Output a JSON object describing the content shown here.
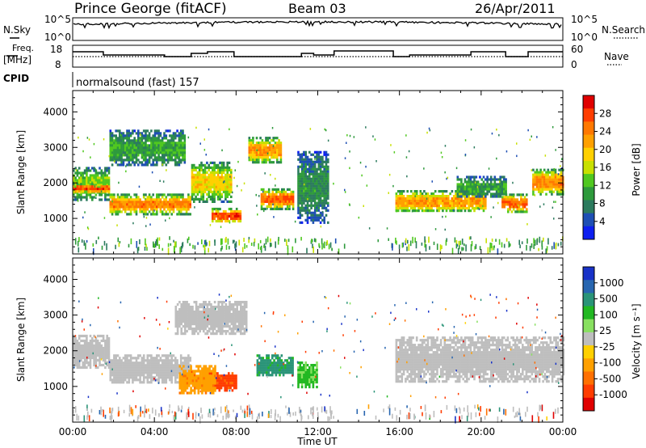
{
  "header": {
    "station": "Prince George (fitACF)",
    "beam": "Beam 03",
    "date": "26/Apr/2011"
  },
  "status_panels": {
    "nsky_label": "N.Sky",
    "nsky_ticks": [
      "10^5",
      "10^0"
    ],
    "nsearch_label": "N.Search",
    "nsearch_ticks": [
      "10^5",
      "10^0"
    ],
    "freq_label": "Freq.",
    "freq_unit": "[MHz]",
    "freq_ticks": [
      "18",
      "8"
    ],
    "nave_label": "Nave",
    "nave_ticks": [
      "60",
      "0"
    ],
    "cpid_label": "CPID",
    "cpid_text": "normalsound (fast) 157"
  },
  "power_colorbar": {
    "label": "Power [dB]",
    "ticks": [
      "28",
      "24",
      "20",
      "16",
      "12",
      "8",
      "4"
    ],
    "colors": [
      "#e00000",
      "#ff3d00",
      "#ff7800",
      "#ffa000",
      "#ffd000",
      "#c8e000",
      "#50c820",
      "#2e9a3c",
      "#2c7b5e",
      "#1e4fb4",
      "#0d1ff0"
    ]
  },
  "velocity_colorbar": {
    "label": "Velocity [m s⁻¹]",
    "ticks": [
      "1000",
      "500",
      "100",
      "25",
      "-25",
      "-100",
      "-500",
      "-1000"
    ],
    "colors": [
      "#1832c8",
      "#2866b0",
      "#2a9478",
      "#22b822",
      "#88e060",
      "#bebebe",
      "#ffd000",
      "#ffa000",
      "#ff7000",
      "#ff3c00",
      "#e00000"
    ]
  },
  "x_axis": {
    "label": "Time UT",
    "ticks": [
      "00:00",
      "04:00",
      "08:00",
      "12:00",
      "16:00",
      "20:00",
      "00:00"
    ]
  },
  "y_axis": {
    "label": "Slant Range [km]",
    "ticks": [
      "4000",
      "3000",
      "2000",
      "1000"
    ]
  },
  "chart_data": [
    {
      "type": "heatmap",
      "title": "Power",
      "xlabel": "Time UT",
      "ylabel": "Slant Range [km]",
      "x_range_hours": [
        0,
        24
      ],
      "ylim": [
        0,
        4600
      ],
      "colorbar": "Power [dB]",
      "clim": [
        0,
        31
      ],
      "regions": [
        {
          "t0": 0.0,
          "t1": 1.8,
          "r0": 1500,
          "r1": 2450,
          "value": 14
        },
        {
          "t0": 0.0,
          "t1": 1.8,
          "r0": 1750,
          "r1": 2000,
          "value": 28
        },
        {
          "t0": 1.8,
          "t1": 5.8,
          "r0": 1150,
          "r1": 1700,
          "value": 24
        },
        {
          "t0": 1.8,
          "t1": 5.5,
          "r0": 2500,
          "r1": 3500,
          "value": 10
        },
        {
          "t0": 5.8,
          "t1": 7.8,
          "r0": 1500,
          "r1": 2600,
          "value": 18
        },
        {
          "t0": 6.8,
          "t1": 8.2,
          "r0": 900,
          "r1": 1300,
          "value": 28
        },
        {
          "t0": 8.6,
          "t1": 10.2,
          "r0": 2600,
          "r1": 3300,
          "value": 22
        },
        {
          "t0": 9.2,
          "t1": 10.8,
          "r0": 1300,
          "r1": 1850,
          "value": 26
        },
        {
          "t0": 11.0,
          "t1": 12.5,
          "r0": 900,
          "r1": 2900,
          "value": 8
        },
        {
          "t0": 15.8,
          "t1": 20.2,
          "r0": 1200,
          "r1": 1800,
          "value": 22
        },
        {
          "t0": 18.8,
          "t1": 21.2,
          "r0": 1600,
          "r1": 2200,
          "value": 10
        },
        {
          "t0": 21.0,
          "t1": 22.2,
          "r0": 1200,
          "r1": 1700,
          "value": 26
        },
        {
          "t0": 22.5,
          "t1": 24.0,
          "r0": 1700,
          "r1": 2400,
          "value": 24
        }
      ]
    },
    {
      "type": "heatmap",
      "title": "Velocity",
      "xlabel": "Time UT",
      "ylabel": "Slant Range [km]",
      "x_range_hours": [
        0,
        24
      ],
      "ylim": [
        0,
        4600
      ],
      "colorbar": "Velocity [m s⁻¹]",
      "regions": [
        {
          "t0": 0.0,
          "t1": 1.8,
          "r0": 1500,
          "r1": 2450,
          "value": 0
        },
        {
          "t0": 1.8,
          "t1": 5.8,
          "r0": 1150,
          "r1": 1900,
          "value": 0
        },
        {
          "t0": 5.0,
          "t1": 8.5,
          "r0": 2500,
          "r1": 3400,
          "value": 0
        },
        {
          "t0": 6.5,
          "t1": 8.0,
          "r0": 900,
          "r1": 1400,
          "value": -400
        },
        {
          "t0": 5.2,
          "t1": 7.0,
          "r0": 800,
          "r1": 1600,
          "value": -120
        },
        {
          "t0": 9.0,
          "t1": 10.8,
          "r0": 1300,
          "r1": 1900,
          "value": 120
        },
        {
          "t0": 11.0,
          "t1": 12.0,
          "r0": 1000,
          "r1": 1700,
          "value": 60
        },
        {
          "t0": 15.8,
          "t1": 24.0,
          "r0": 1150,
          "r1": 2400,
          "value": 0
        }
      ]
    }
  ]
}
